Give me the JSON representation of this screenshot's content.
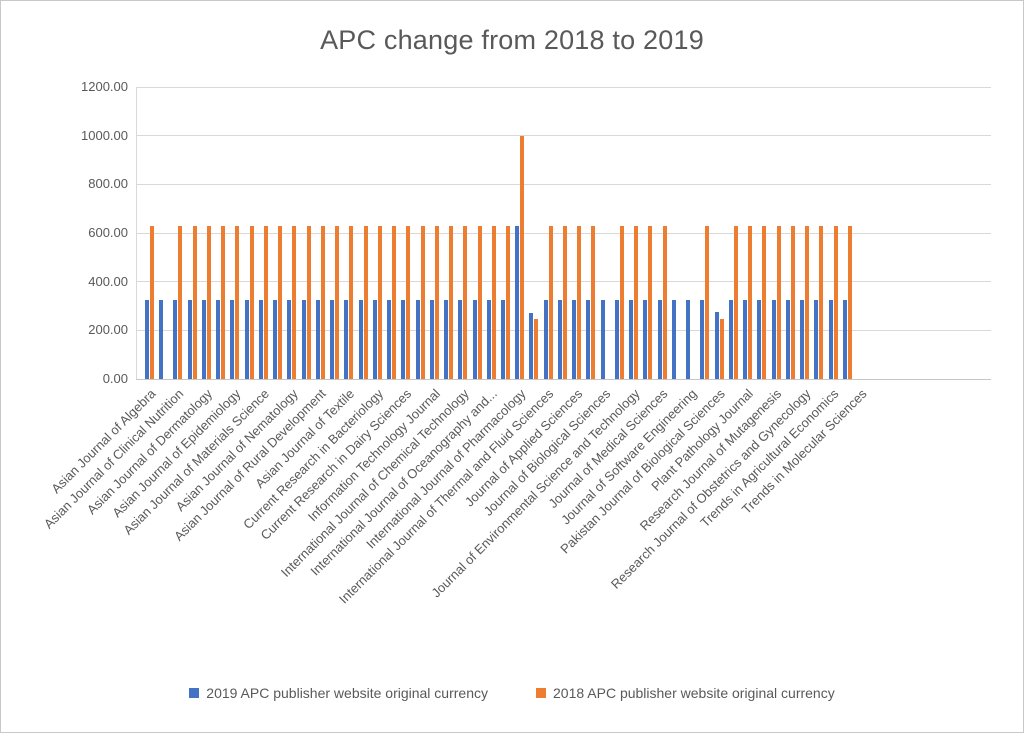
{
  "chart_data": {
    "type": "bar",
    "title": "APC change from 2018 to 2019",
    "xlabel": "",
    "ylabel": "",
    "ylim": [
      0,
      1200
    ],
    "ytick_values": [
      1200,
      1000,
      800,
      600,
      400,
      200,
      0
    ],
    "ytick_labels": [
      "1200.00",
      "1000.00",
      "800.00",
      "600.00",
      "400.00",
      "200.00",
      "0.00"
    ],
    "grid": "horizontal",
    "legend_position": "bottom-center",
    "category_label_interval": 2,
    "plotted_slots": 60,
    "category_labels": [
      "Asian Journal of Algebra",
      "Asian Journal of Clinical Nutrition",
      "Asian Journal of Dermatology",
      "Asian Journal of Epidemiology",
      "Asian Journal of Materials Science",
      "Asian Journal of Nematology",
      "Asian Journal of Rural Development",
      "Asian Journal of Textile",
      "Current Research in Bacteriology",
      "Current Research in Dairy Sciences",
      "Information Technology Journal",
      "International Journal of Chemical Technology",
      "International Journal of Oceanography and...",
      "International Journal of Pharmacology",
      "International Journal of Thermal and Fluid Sciences",
      "Journal of Applied Sciences",
      "Journal of Biological Sciences",
      "Journal of Environmental Science and Technology",
      "Journal of Medical Sciences",
      "Journal of Software Engineering",
      "Pakistan Journal of Biological Sciences",
      "Plant Pathology Journal",
      "Research Journal of Mutagenesis",
      "Research Journal of Obstetrics and Gynecology",
      "Trends in Agricultural Economics",
      "Trends in Molecular Sciences"
    ],
    "series": [
      {
        "name": "2019 APC publisher website original currency",
        "color": "#4472C4",
        "values": [
          325,
          325,
          325,
          325,
          325,
          325,
          325,
          325,
          325,
          325,
          325,
          325,
          325,
          325,
          325,
          325,
          325,
          325,
          325,
          325,
          325,
          325,
          325,
          325,
          325,
          325,
          630,
          270,
          325,
          325,
          325,
          325,
          325,
          325,
          325,
          325,
          325,
          325,
          325,
          325,
          275,
          325,
          325,
          325,
          325,
          325,
          325,
          325,
          325,
          325
        ]
      },
      {
        "name": "2018 APC publisher website original currency",
        "color": "#ED7D31",
        "values": [
          630,
          null,
          630,
          630,
          630,
          630,
          630,
          630,
          630,
          630,
          630,
          630,
          630,
          630,
          630,
          630,
          630,
          630,
          630,
          630,
          630,
          630,
          630,
          630,
          630,
          630,
          1000,
          245,
          630,
          630,
          630,
          630,
          null,
          630,
          630,
          630,
          630,
          null,
          null,
          630,
          245,
          630,
          630,
          630,
          630,
          630,
          630,
          630,
          630,
          630
        ]
      }
    ]
  },
  "colors": {
    "text": "#595959",
    "gridline": "#D9D9D9",
    "axis_line": "#C6C6C6",
    "background": "#FFFFFF",
    "border": "#C8C8C8",
    "series_2019": "#4472C4",
    "series_2018": "#ED7D31"
  }
}
